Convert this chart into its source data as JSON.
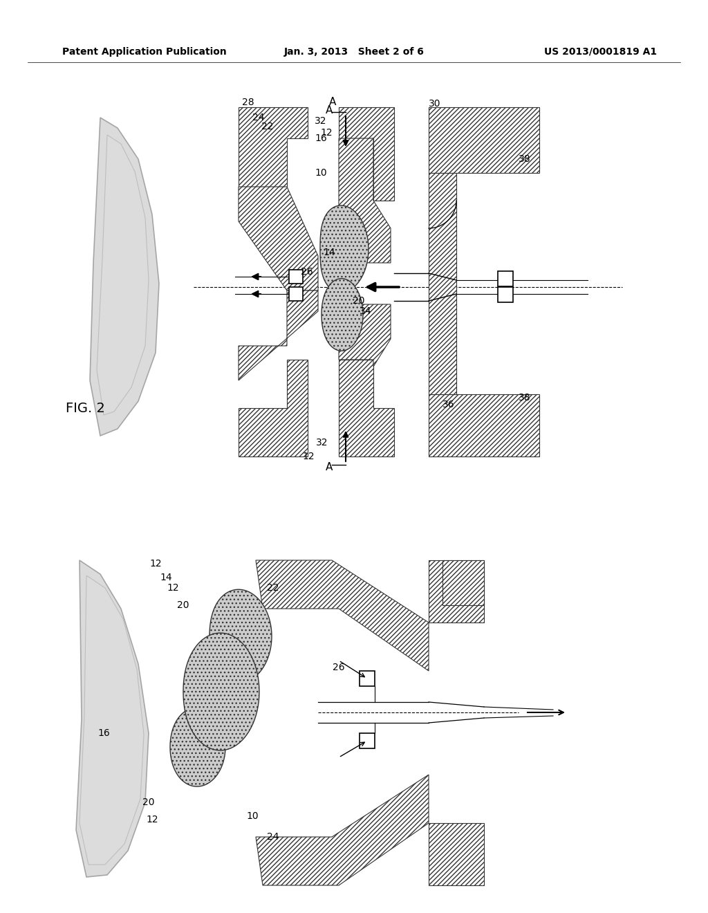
{
  "title_left": "Patent Application Publication",
  "title_mid": "Jan. 3, 2013   Sheet 2 of 6",
  "title_right": "US 2013/0001819 A1",
  "fig_label": "FIG. 2",
  "background": "#ffffff",
  "hatch_color": "#555555",
  "line_color": "#000000",
  "stipple_color": "#aaaaaa",
  "arrow_color": "#000000",
  "label_fontsize": 11,
  "header_fontsize": 10
}
